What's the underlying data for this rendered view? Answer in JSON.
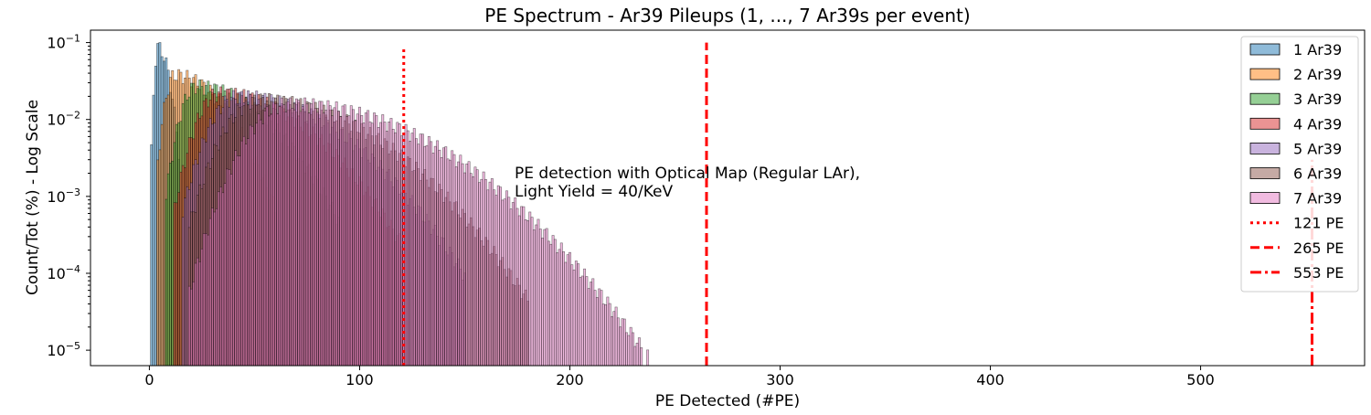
{
  "chart_data": {
    "type": "bar",
    "title": "PE Spectrum - Ar39 Pileups (1, ..., 7 Ar39s per event)",
    "xlabel": "PE Detected (#PE)",
    "ylabel": "Count/Tot (%) - Log Scale",
    "xlim": [
      -28,
      578
    ],
    "ylim": [
      6.3e-06,
      0.145
    ],
    "yscale": "log",
    "xticks": [
      0,
      100,
      200,
      300,
      400,
      500
    ],
    "xtick_labels": [
      "0",
      "100",
      "200",
      "300",
      "400",
      "500"
    ],
    "ytick_labels": [
      {
        "value": 0.1,
        "base": "10",
        "exp": "−1"
      },
      {
        "value": 0.01,
        "base": "10",
        "exp": "−2"
      },
      {
        "value": 0.001,
        "base": "10",
        "exp": "−3"
      },
      {
        "value": 0.0001,
        "base": "10",
        "exp": "−4"
      },
      {
        "value": 1e-05,
        "base": "10",
        "exp": "−5"
      }
    ],
    "annotation": [
      "PE detection with Optical Map (Regular LAr),",
      "Light Yield = 40/KeV"
    ],
    "legend_position": "top-right",
    "grid": false,
    "series": [
      {
        "name": "1 Ar39",
        "color": "#1f77b4",
        "peak_x": 4,
        "peak_y": 0.088,
        "x_start": 1,
        "x_end": 14,
        "sigma_low": 1.2,
        "sigma_high": 4.0
      },
      {
        "name": "2 Ar39",
        "color": "#ff7f0e",
        "peak_x": 12,
        "peak_y": 0.038,
        "x_start": 4,
        "x_end": 60,
        "sigma_low": 3.5,
        "sigma_high": 17
      },
      {
        "name": "3 Ar39",
        "color": "#2ca02c",
        "peak_x": 22,
        "peak_y": 0.027,
        "x_start": 8,
        "x_end": 90,
        "sigma_low": 5.5,
        "sigma_high": 24
      },
      {
        "name": "4 Ar39",
        "color": "#d62728",
        "peak_x": 33,
        "peak_y": 0.022,
        "x_start": 12,
        "x_end": 120,
        "sigma_low": 8,
        "sigma_high": 29
      },
      {
        "name": "5 Ar39",
        "color": "#9467bd",
        "peak_x": 42,
        "peak_y": 0.02,
        "x_start": 16,
        "x_end": 150,
        "sigma_low": 10,
        "sigma_high": 33
      },
      {
        "name": "6 Ar39",
        "color": "#8c564b",
        "peak_x": 52,
        "peak_y": 0.018,
        "x_start": 19,
        "x_end": 180,
        "sigma_low": 12,
        "sigma_high": 37
      },
      {
        "name": "7 Ar39",
        "color": "#e377c2",
        "peak_x": 66,
        "peak_y": 0.016,
        "x_start": 19,
        "x_end": 252,
        "sigma_low": 14,
        "sigma_high": 44
      }
    ],
    "vlines": [
      {
        "name": "121 PE",
        "x": 121,
        "style": "dotted",
        "color": "#ff0000",
        "y_top": 0.085
      },
      {
        "name": "265 PE",
        "x": 265,
        "style": "dashed",
        "color": "#ff0000",
        "y_top": 0.1
      },
      {
        "name": "553 PE",
        "x": 553,
        "style": "dashdot",
        "color": "#ff0000",
        "y_top": 0.003
      }
    ]
  }
}
